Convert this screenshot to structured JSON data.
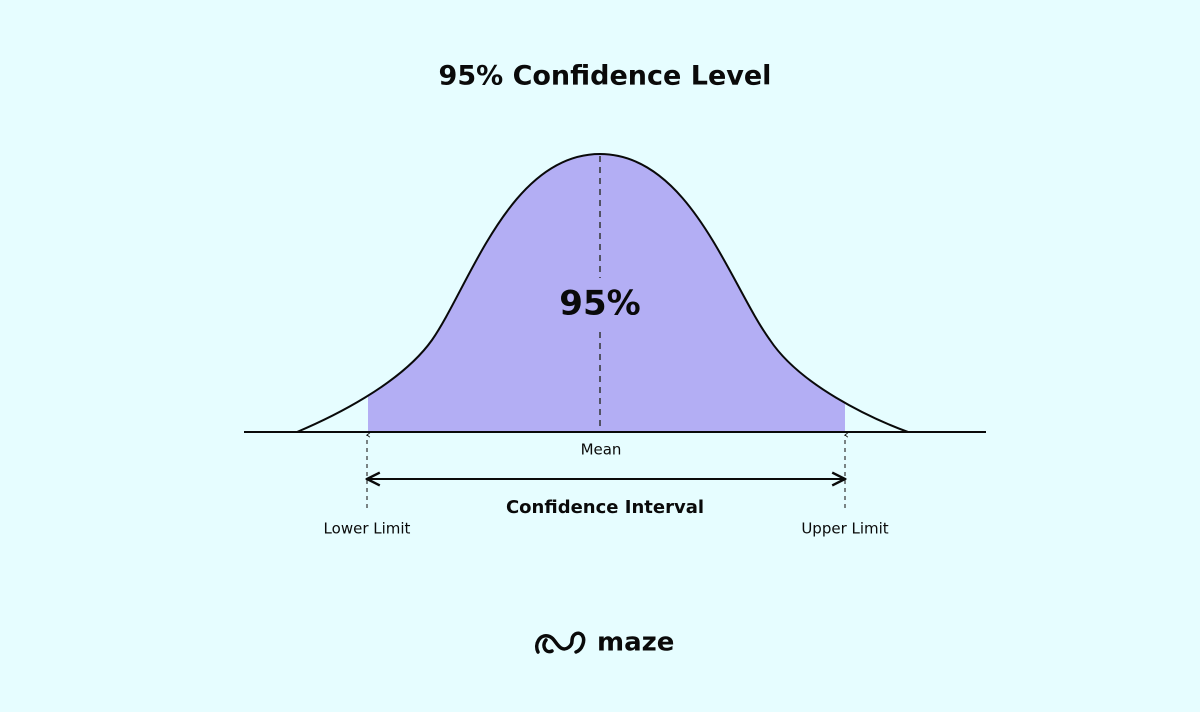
{
  "title": "95% Confidence Level",
  "diagram": {
    "area_label": "95%",
    "mean_label": "Mean",
    "interval_label": "Confidence Interval",
    "lower_label": "Lower Limit",
    "upper_label": "Upper Limit"
  },
  "logo": {
    "text": "maze"
  }
}
